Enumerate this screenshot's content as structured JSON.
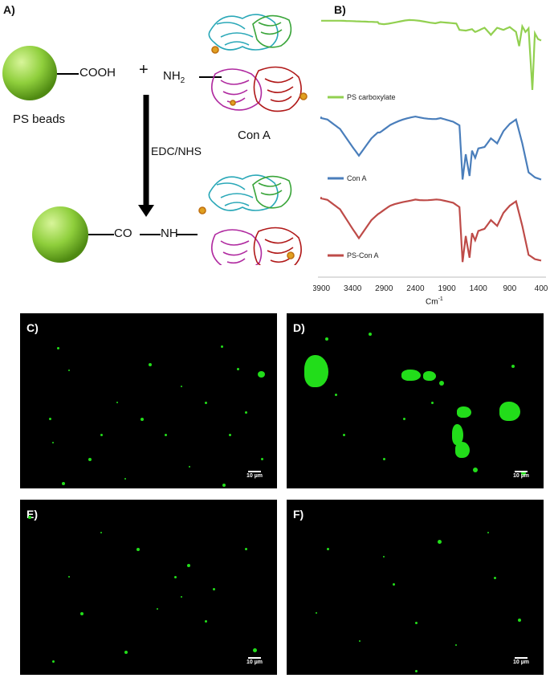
{
  "panelA": {
    "label": "A)",
    "bead_group": "COOH",
    "bead_caption": "PS beads",
    "plus": "+",
    "amine_main": "NH",
    "amine_sub": "2",
    "protein_caption": "Con A",
    "reagent": "EDC/NHS",
    "product_co": "CO",
    "product_nh": "NH",
    "colors": {
      "bead": "#8fcf3c",
      "protein_cyan": "#2aa8b8",
      "protein_green": "#3aa53a",
      "protein_magenta": "#b02aa0",
      "protein_red": "#b01818"
    }
  },
  "panelB": {
    "label": "B)",
    "xaxis_label": "Cm",
    "xaxis_label_sup": "-1",
    "ticks": [
      "3900",
      "3400",
      "2900",
      "2400",
      "1900",
      "1400",
      "900",
      "400"
    ],
    "legend": [
      {
        "name": "PS carboxylate",
        "color": "#92d050"
      },
      {
        "name": "Con A",
        "color": "#4a7ebb"
      },
      {
        "name": "PS-Con A",
        "color": "#be4b48"
      }
    ]
  },
  "micrographs": {
    "scale_text": "10 µm",
    "panels": [
      {
        "label": "C)"
      },
      {
        "label": "D)"
      },
      {
        "label": "E)"
      },
      {
        "label": "F)"
      }
    ],
    "spot_color": "#22dd1a"
  },
  "chart_data": {
    "type": "line",
    "title": "",
    "xlabel": "Cm-1",
    "ylabel": "",
    "xlim": [
      3900,
      400
    ],
    "x_ticks": [
      3900,
      3400,
      2900,
      2400,
      1900,
      1400,
      900,
      400
    ],
    "series": [
      {
        "name": "PS carboxylate",
        "color": "#92d050",
        "x": [
          4000,
          3600,
          3300,
          3000,
          2900,
          2500,
          2000,
          1750,
          1700,
          1600,
          1500,
          1450,
          1300,
          1200,
          1100,
          1000,
          900,
          800,
          750,
          700,
          650,
          600,
          540,
          500,
          450,
          400
        ],
        "y": [
          0.98,
          0.98,
          0.97,
          0.96,
          0.95,
          0.97,
          0.96,
          0.94,
          0.85,
          0.84,
          0.86,
          0.82,
          0.88,
          0.78,
          0.88,
          0.85,
          0.89,
          0.82,
          0.62,
          0.9,
          0.82,
          0.87,
          0.0,
          0.8,
          0.72,
          0.7
        ]
      },
      {
        "name": "Con A",
        "color": "#4a7ebb",
        "x": [
          4000,
          3800,
          3600,
          3400,
          3300,
          3100,
          3000,
          2800,
          2400,
          2000,
          1800,
          1700,
          1650,
          1600,
          1540,
          1500,
          1450,
          1400,
          1300,
          1200,
          1100,
          1000,
          900,
          800,
          700,
          600,
          500,
          400
        ],
        "y": [
          0.92,
          0.88,
          0.75,
          0.5,
          0.38,
          0.62,
          0.7,
          0.8,
          0.92,
          0.9,
          0.85,
          0.8,
          0.05,
          0.4,
          0.1,
          0.45,
          0.35,
          0.48,
          0.5,
          0.62,
          0.55,
          0.72,
          0.82,
          0.88,
          0.55,
          0.15,
          0.08,
          0.05
        ]
      },
      {
        "name": "PS-Con A",
        "color": "#be4b48",
        "x": [
          4000,
          3800,
          3600,
          3400,
          3300,
          3100,
          3000,
          2800,
          2400,
          2000,
          1800,
          1700,
          1650,
          1600,
          1540,
          1500,
          1450,
          1400,
          1300,
          1200,
          1100,
          1000,
          900,
          800,
          700,
          600,
          500,
          400
        ],
        "y": [
          0.92,
          0.88,
          0.75,
          0.48,
          0.35,
          0.6,
          0.68,
          0.78,
          0.9,
          0.88,
          0.84,
          0.78,
          0.02,
          0.38,
          0.08,
          0.42,
          0.32,
          0.45,
          0.48,
          0.6,
          0.52,
          0.7,
          0.8,
          0.86,
          0.52,
          0.12,
          0.06,
          0.04
        ]
      }
    ]
  }
}
